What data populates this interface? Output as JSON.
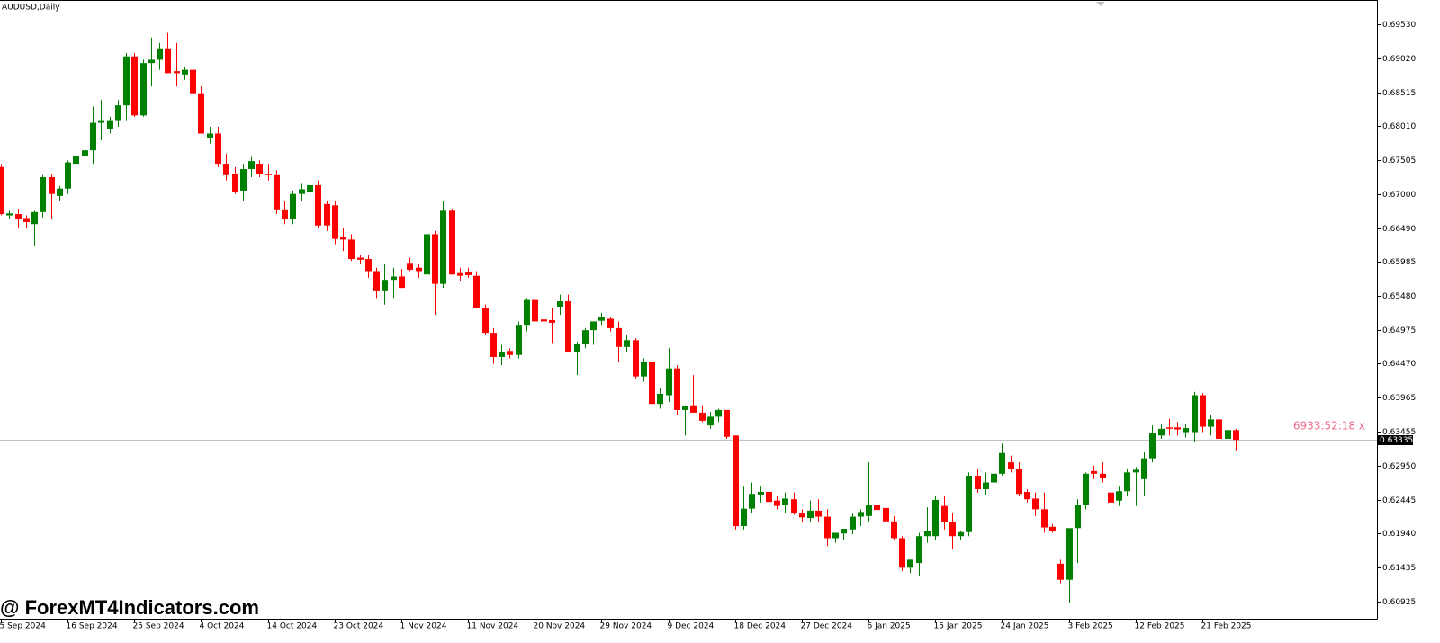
{
  "chart_data": {
    "type": "candlestick",
    "title": "AUDUSD,Daily",
    "watermark": "@ ForexMT4Indicators.com",
    "countdown": "6933:52:18 x",
    "up_color": "#008000",
    "down_color": "#ff0000",
    "ylim": [
      0.6067,
      0.6985
    ],
    "yticks": [
      {
        "value": 0.6953,
        "label": "0.69530"
      },
      {
        "value": 0.6902,
        "label": "0.69020"
      },
      0.68515,
      {
        "value": 0.6801,
        "label": "0.68010"
      },
      0.67505,
      {
        "value": 0.67,
        "label": "0.67000"
      },
      {
        "value": 0.6649,
        "label": "0.66490"
      },
      0.65985,
      {
        "value": 0.6548,
        "label": "0.65480"
      },
      0.64975,
      {
        "value": 0.6447,
        "label": "0.64470"
      },
      0.63965,
      0.63455,
      {
        "value": 0.6295,
        "label": "0.62950"
      },
      0.62445,
      {
        "value": 0.6194,
        "label": "0.61940"
      },
      0.61435,
      0.60925
    ],
    "current_price": {
      "value": 0.63335,
      "label": "0.63335"
    },
    "categories": [
      "5 Sep 2024",
      null,
      null,
      null,
      null,
      null,
      null,
      null,
      "16 Sep 2024",
      null,
      null,
      null,
      null,
      null,
      null,
      null,
      "25 Sep 2024",
      null,
      null,
      null,
      null,
      null,
      null,
      null,
      "4 Oct 2024",
      null,
      null,
      null,
      null,
      null,
      null,
      null,
      "14 Oct 2024",
      null,
      null,
      null,
      null,
      null,
      null,
      null,
      "23 Oct 2024",
      null,
      null,
      null,
      null,
      null,
      null,
      null,
      "1 Nov 2024",
      null,
      null,
      null,
      null,
      null,
      null,
      null,
      "11 Nov 2024",
      null,
      null,
      null,
      null,
      null,
      null,
      null,
      "20 Nov 2024",
      null,
      null,
      null,
      null,
      null,
      null,
      null,
      "29 Nov 2024",
      null,
      null,
      null,
      null,
      null,
      null,
      null,
      "9 Dec 2024",
      null,
      null,
      null,
      null,
      null,
      null,
      null,
      "18 Dec 2024",
      null,
      null,
      null,
      null,
      null,
      null,
      null,
      "27 Dec 2024",
      null,
      null,
      null,
      null,
      null,
      null,
      null,
      "6 Jan 2025",
      null,
      null,
      null,
      null,
      null,
      null,
      null,
      "15 Jan 2025",
      null,
      null,
      null,
      null,
      null,
      null,
      null,
      "24 Jan 2025",
      null,
      null,
      null,
      null,
      null,
      null,
      null,
      "3 Feb 2025",
      null,
      null,
      null,
      null,
      null,
      null,
      null,
      "12 Feb 2025",
      null,
      null,
      null,
      null,
      null,
      null,
      null,
      "21 Feb 2025",
      null,
      null,
      null,
      null
    ],
    "open": [
      0.674,
      0.6668,
      0.667,
      0.6664,
      0.6655,
      0.6673,
      0.6725,
      0.6697,
      0.6708,
      0.6745,
      0.6756,
      0.6765,
      0.6806,
      0.6797,
      0.681,
      0.6832,
      0.6905,
      0.6817,
      0.6895,
      0.69,
      0.6917,
      0.6883,
      0.6878,
      0.6885,
      0.685,
      0.6784,
      0.679,
      0.6745,
      0.673,
      0.6705,
      0.6737,
      0.6745,
      0.673,
      0.6728,
      0.6677,
      0.6663,
      0.67,
      0.6703,
      0.6713,
      0.6685,
      0.6683,
      0.6636,
      0.6632,
      0.6605,
      0.6603,
      0.6585,
      0.6555,
      0.6572,
      0.6577,
      0.6596,
      0.659,
      0.658,
      0.664,
      0.6566,
      0.6675,
      0.6582,
      0.6583,
      0.6578,
      0.653,
      0.6493,
      0.6457,
      0.6466,
      0.646,
      0.6505,
      0.6542,
      0.6513,
      0.6512,
      0.6532,
      0.654,
      0.6465,
      0.6477,
      0.6497,
      0.6511,
      0.6514,
      0.65,
      0.6472,
      0.6482,
      0.6428,
      0.645,
      0.6387,
      0.64,
      0.644,
      0.6378,
      0.6385,
      0.6374,
      0.6355,
      0.6368,
      0.6378,
      0.634,
      0.6205,
      0.6231,
      0.6252,
      0.6256,
      0.6243,
      0.6236,
      0.6245,
      0.6225,
      0.6217,
      0.6228,
      0.6219,
      0.6187,
      0.6194,
      0.62,
      0.6219,
      0.622,
      0.6236,
      0.6232,
      0.6212,
      0.6187,
      0.6143,
      0.615,
      0.619,
      0.619,
      0.6235,
      0.6211,
      0.619,
      0.6196,
      0.628,
      0.626,
      0.627,
      0.6283,
      0.63,
      0.629,
      0.6256,
      0.6246,
      0.623,
      0.6204,
      0.6149,
      0.6125,
      0.6202,
      0.6237,
      0.6287,
      0.6283,
      0.6255,
      0.6243,
      0.6257,
      0.6285,
      0.6275,
      0.6306,
      0.634,
      0.6352,
      0.6352,
      0.6345,
      0.6345,
      0.64,
      0.6353,
      0.6364,
      0.6335,
      0.6348
    ],
    "high": [
      0.6745,
      0.6675,
      0.6678,
      0.6668,
      0.6675,
      0.6728,
      0.673,
      0.6712,
      0.675,
      0.6785,
      0.679,
      0.683,
      0.684,
      0.6815,
      0.684,
      0.691,
      0.691,
      0.69,
      0.6933,
      0.6925,
      0.694,
      0.6925,
      0.689,
      0.6885,
      0.686,
      0.68,
      0.68,
      0.676,
      0.674,
      0.6745,
      0.6755,
      0.675,
      0.6745,
      0.6735,
      0.669,
      0.6705,
      0.6715,
      0.6718,
      0.672,
      0.669,
      0.669,
      0.665,
      0.664,
      0.661,
      0.661,
      0.659,
      0.6595,
      0.659,
      0.6588,
      0.6605,
      0.6595,
      0.6645,
      0.6645,
      0.669,
      0.6678,
      0.659,
      0.659,
      0.6585,
      0.6535,
      0.65,
      0.6475,
      0.647,
      0.651,
      0.6545,
      0.6545,
      0.6525,
      0.653,
      0.655,
      0.655,
      0.648,
      0.65,
      0.651,
      0.6523,
      0.6517,
      0.651,
      0.649,
      0.6485,
      0.6455,
      0.6455,
      0.641,
      0.647,
      0.6445,
      0.6385,
      0.643,
      0.6385,
      0.6375,
      0.638,
      0.6378,
      0.634,
      0.6265,
      0.627,
      0.6265,
      0.6268,
      0.625,
      0.6255,
      0.6255,
      0.623,
      0.6243,
      0.6245,
      0.623,
      0.6195,
      0.62,
      0.6225,
      0.623,
      0.63,
      0.628,
      0.624,
      0.622,
      0.619,
      0.6155,
      0.6195,
      0.6233,
      0.625,
      0.625,
      0.6225,
      0.6198,
      0.6285,
      0.629,
      0.6285,
      0.629,
      0.6328,
      0.631,
      0.63,
      0.626,
      0.6255,
      0.6255,
      0.6208,
      0.6155,
      0.62,
      0.6245,
      0.6285,
      0.6295,
      0.63,
      0.626,
      0.6265,
      0.629,
      0.6293,
      0.6315,
      0.6355,
      0.6357,
      0.6365,
      0.636,
      0.6357,
      0.6405,
      0.6403,
      0.637,
      0.639,
      0.6358,
      0.635
    ],
    "low": [
      0.6668,
      0.6662,
      0.665,
      0.665,
      0.6622,
      0.6665,
      0.6662,
      0.669,
      0.67,
      0.673,
      0.673,
      0.6745,
      0.678,
      0.679,
      0.68,
      0.681,
      0.6815,
      0.6815,
      0.686,
      0.6885,
      0.688,
      0.686,
      0.687,
      0.6845,
      0.679,
      0.6775,
      0.674,
      0.672,
      0.67,
      0.669,
      0.6725,
      0.6725,
      0.672,
      0.667,
      0.6655,
      0.6655,
      0.669,
      0.669,
      0.665,
      0.6645,
      0.6625,
      0.6615,
      0.66,
      0.6595,
      0.6575,
      0.6545,
      0.6535,
      0.6545,
      0.656,
      0.6585,
      0.6575,
      0.6575,
      0.652,
      0.656,
      0.658,
      0.657,
      0.6575,
      0.653,
      0.649,
      0.6447,
      0.6445,
      0.6455,
      0.6455,
      0.6495,
      0.65,
      0.6485,
      0.6478,
      0.652,
      0.6465,
      0.643,
      0.647,
      0.6475,
      0.6505,
      0.6495,
      0.645,
      0.6465,
      0.6425,
      0.642,
      0.6375,
      0.638,
      0.639,
      0.637,
      0.634,
      0.6375,
      0.636,
      0.635,
      0.636,
      0.6335,
      0.62,
      0.62,
      0.6225,
      0.624,
      0.622,
      0.623,
      0.6225,
      0.6222,
      0.621,
      0.621,
      0.6212,
      0.6175,
      0.618,
      0.6185,
      0.6193,
      0.6205,
      0.6212,
      0.6225,
      0.621,
      0.6185,
      0.6138,
      0.6135,
      0.613,
      0.618,
      0.6185,
      0.62,
      0.617,
      0.6185,
      0.619,
      0.6255,
      0.6252,
      0.6265,
      0.628,
      0.6285,
      0.625,
      0.624,
      0.622,
      0.6195,
      0.6195,
      0.612,
      0.609,
      0.615,
      0.623,
      0.6275,
      0.627,
      0.624,
      0.6235,
      0.625,
      0.6235,
      0.625,
      0.63,
      0.6335,
      0.634,
      0.634,
      0.6337,
      0.633,
      0.6345,
      0.634,
      0.6335,
      0.632,
      0.6318
    ],
    "close": [
      0.667,
      0.6671,
      0.6663,
      0.6658,
      0.6673,
      0.6725,
      0.67,
      0.6708,
      0.6747,
      0.6757,
      0.6765,
      0.6806,
      0.681,
      0.681,
      0.6832,
      0.6905,
      0.6817,
      0.6895,
      0.69,
      0.6917,
      0.688,
      0.688,
      0.6885,
      0.685,
      0.679,
      0.679,
      0.6745,
      0.6728,
      0.6703,
      0.6737,
      0.6749,
      0.673,
      0.6728,
      0.6677,
      0.6663,
      0.67,
      0.6707,
      0.6713,
      0.6653,
      0.6653,
      0.6633,
      0.6632,
      0.6603,
      0.6602,
      0.6585,
      0.6555,
      0.6572,
      0.6577,
      0.656,
      0.6587,
      0.6585,
      0.664,
      0.6566,
      0.6675,
      0.658,
      0.6578,
      0.6579,
      0.653,
      0.6493,
      0.6457,
      0.6465,
      0.646,
      0.6505,
      0.6542,
      0.651,
      0.651,
      0.6508,
      0.654,
      0.6465,
      0.6477,
      0.6497,
      0.651,
      0.6516,
      0.65,
      0.6472,
      0.6482,
      0.6428,
      0.645,
      0.6387,
      0.6402,
      0.644,
      0.6378,
      0.6384,
      0.6374,
      0.6362,
      0.6368,
      0.6378,
      0.6338,
      0.6205,
      0.6231,
      0.6253,
      0.6256,
      0.6241,
      0.6235,
      0.6246,
      0.6225,
      0.6218,
      0.6228,
      0.6219,
      0.6187,
      0.6195,
      0.6201,
      0.6219,
      0.6226,
      0.6236,
      0.6229,
      0.6212,
      0.6187,
      0.6143,
      0.6155,
      0.619,
      0.6197,
      0.6244,
      0.6211,
      0.619,
      0.6196,
      0.628,
      0.626,
      0.627,
      0.6283,
      0.6314,
      0.629,
      0.6253,
      0.6245,
      0.623,
      0.6203,
      0.6198,
      0.6125,
      0.6202,
      0.6237,
      0.6283,
      0.6283,
      0.6277,
      0.624,
      0.6257,
      0.6285,
      0.6289,
      0.6306,
      0.6343,
      0.635,
      0.635,
      0.6349,
      0.6351,
      0.64,
      0.6353,
      0.6364,
      0.6335,
      0.6348,
      0.63335
    ]
  }
}
